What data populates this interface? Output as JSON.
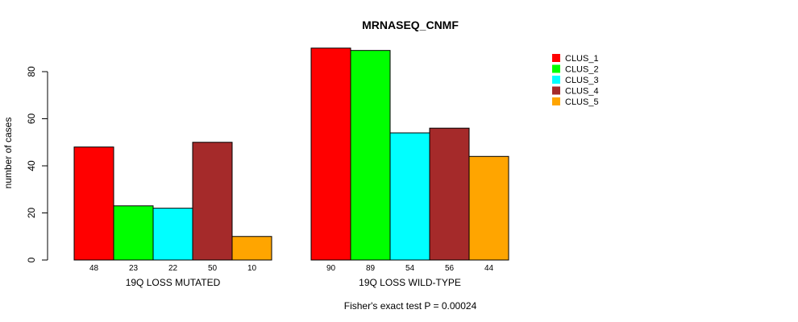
{
  "chart_data": {
    "type": "bar",
    "title": "MRNASEQ_CNMF",
    "xlabel": "",
    "ylabel": "number of cases",
    "ylim": [
      0,
      90
    ],
    "yticks": [
      0,
      20,
      40,
      60,
      80
    ],
    "groups": [
      "19Q LOSS MUTATED",
      "19Q LOSS WILD-TYPE"
    ],
    "series": [
      {
        "name": "CLUS_1",
        "color": "#FF0000",
        "values": [
          48,
          90
        ]
      },
      {
        "name": "CLUS_2",
        "color": "#00FF00",
        "values": [
          23,
          89
        ]
      },
      {
        "name": "CLUS_3",
        "color": "#00FFFF",
        "values": [
          22,
          54
        ]
      },
      {
        "name": "CLUS_4",
        "color": "#A52A2A",
        "values": [
          50,
          56
        ]
      },
      {
        "name": "CLUS_5",
        "color": "#FFA500",
        "values": [
          10,
          44
        ]
      }
    ],
    "legend_position": "top-right",
    "grid": false,
    "annotation": "Fisher's exact test P = 0.00024"
  }
}
